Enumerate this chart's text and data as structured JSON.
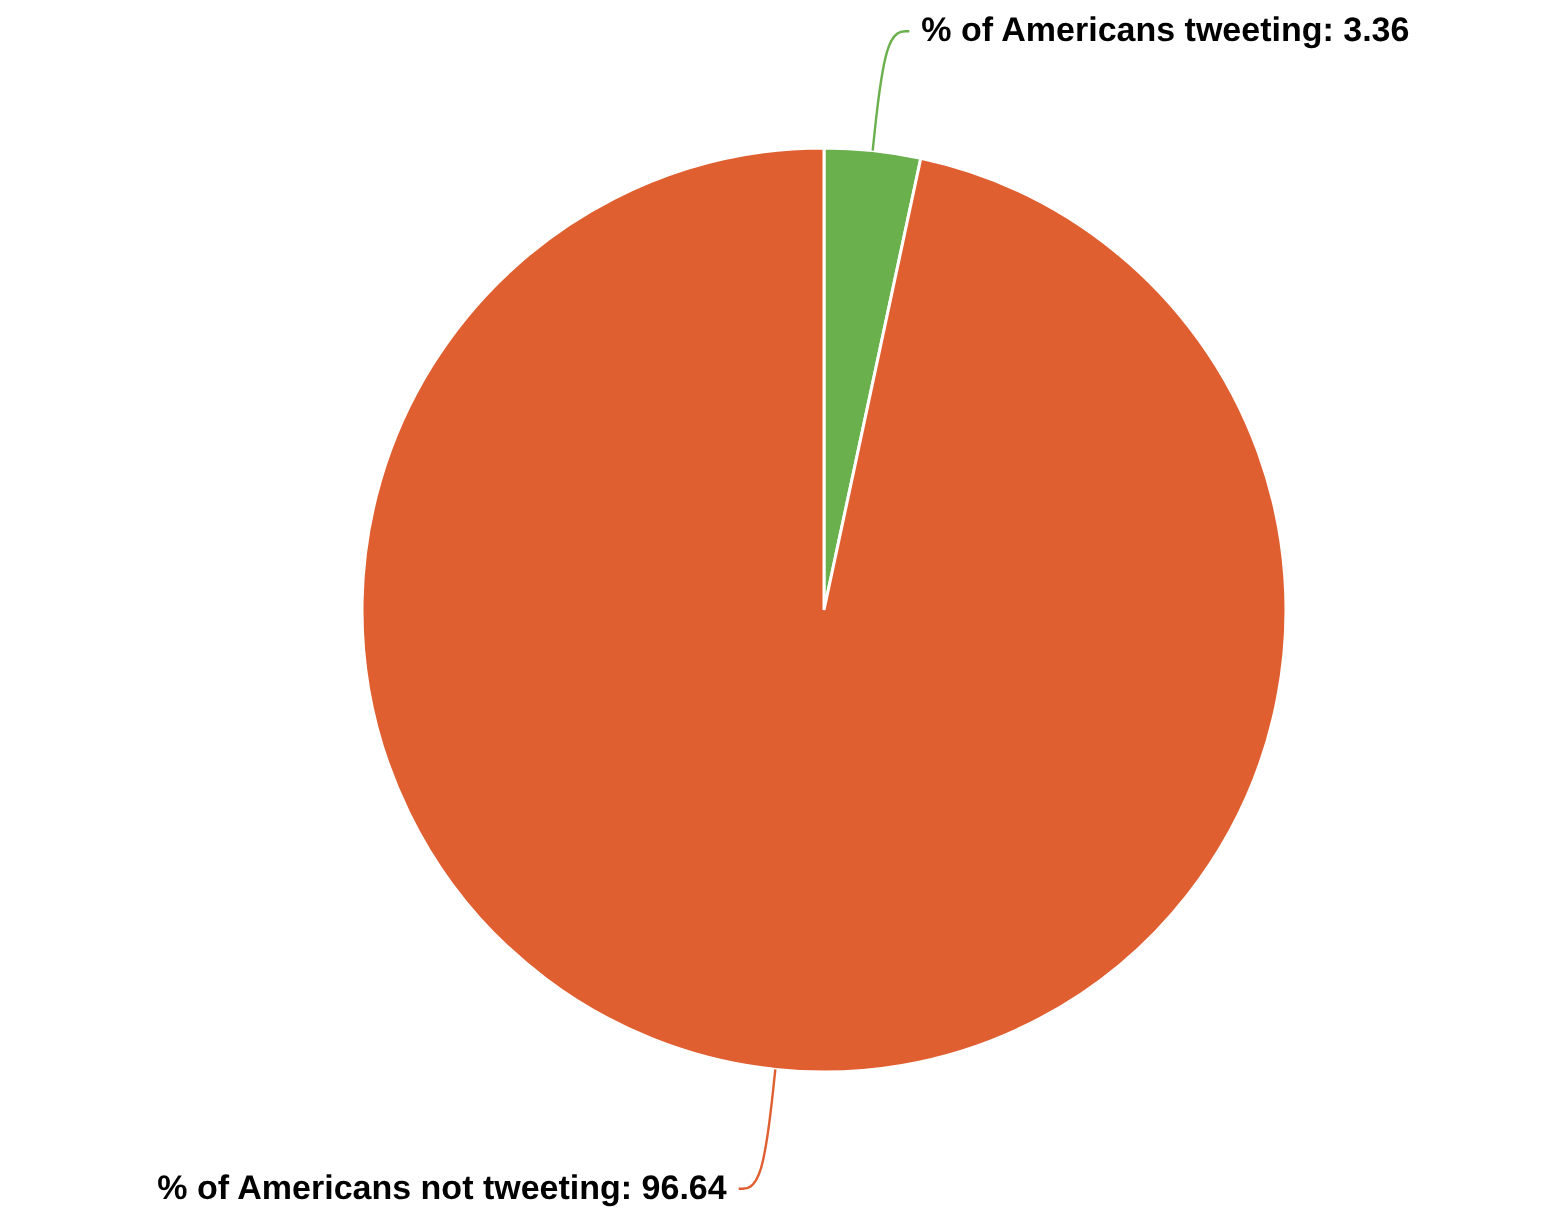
{
  "chart_data": {
    "type": "pie",
    "categories": [
      "% of Americans tweeting: 3.36",
      "% of Americans not tweeting: 96.64"
    ],
    "values": [
      3.36,
      96.64
    ],
    "colors": [
      "#6ab04c",
      "#e05f31"
    ]
  }
}
